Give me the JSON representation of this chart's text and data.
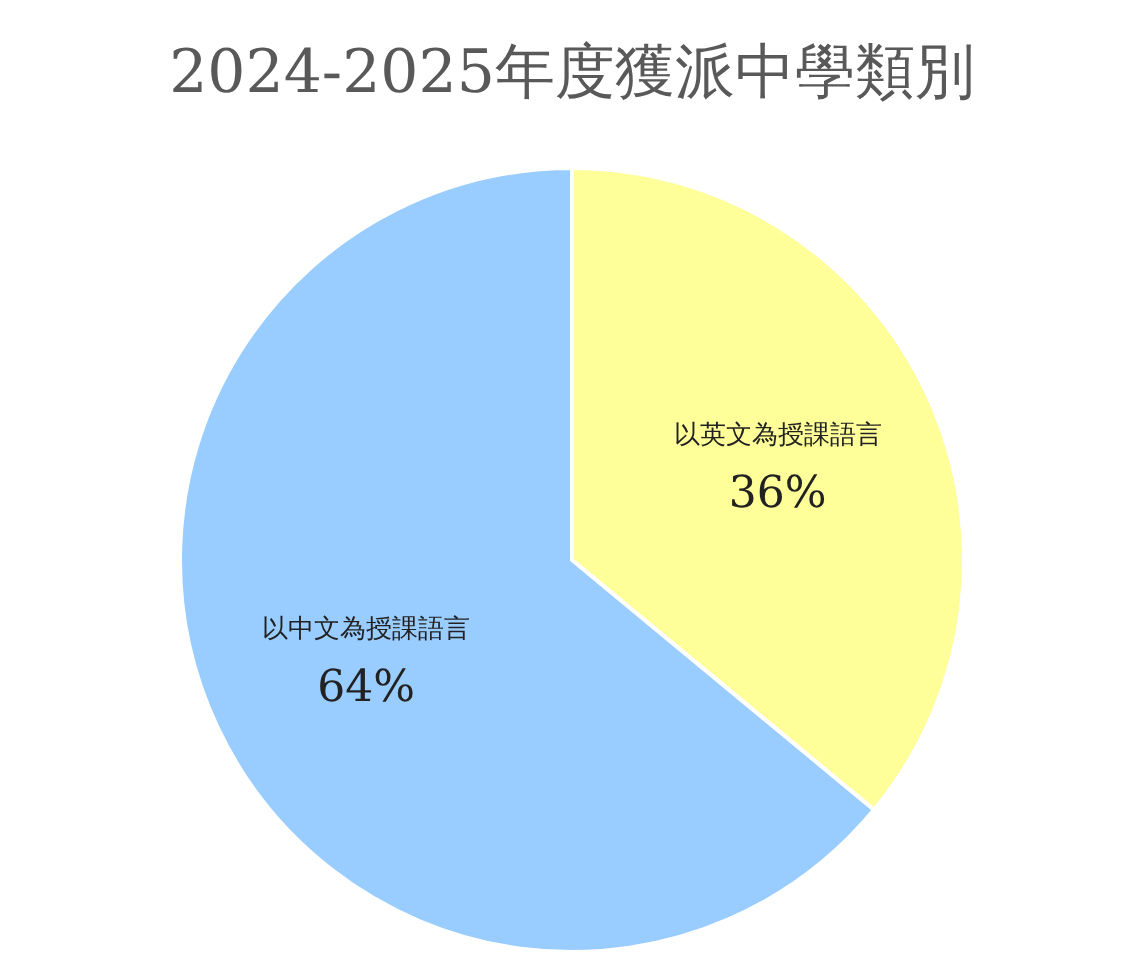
{
  "chart_data": {
    "type": "pie",
    "title": "2024-2025年度獲派中學類別",
    "categories": [
      "以英文為授課語言",
      "以中文為授課語言"
    ],
    "values": [
      36,
      64
    ],
    "value_labels": [
      "36%",
      "64%"
    ],
    "colors": [
      "#ffff99",
      "#99ccff"
    ]
  }
}
